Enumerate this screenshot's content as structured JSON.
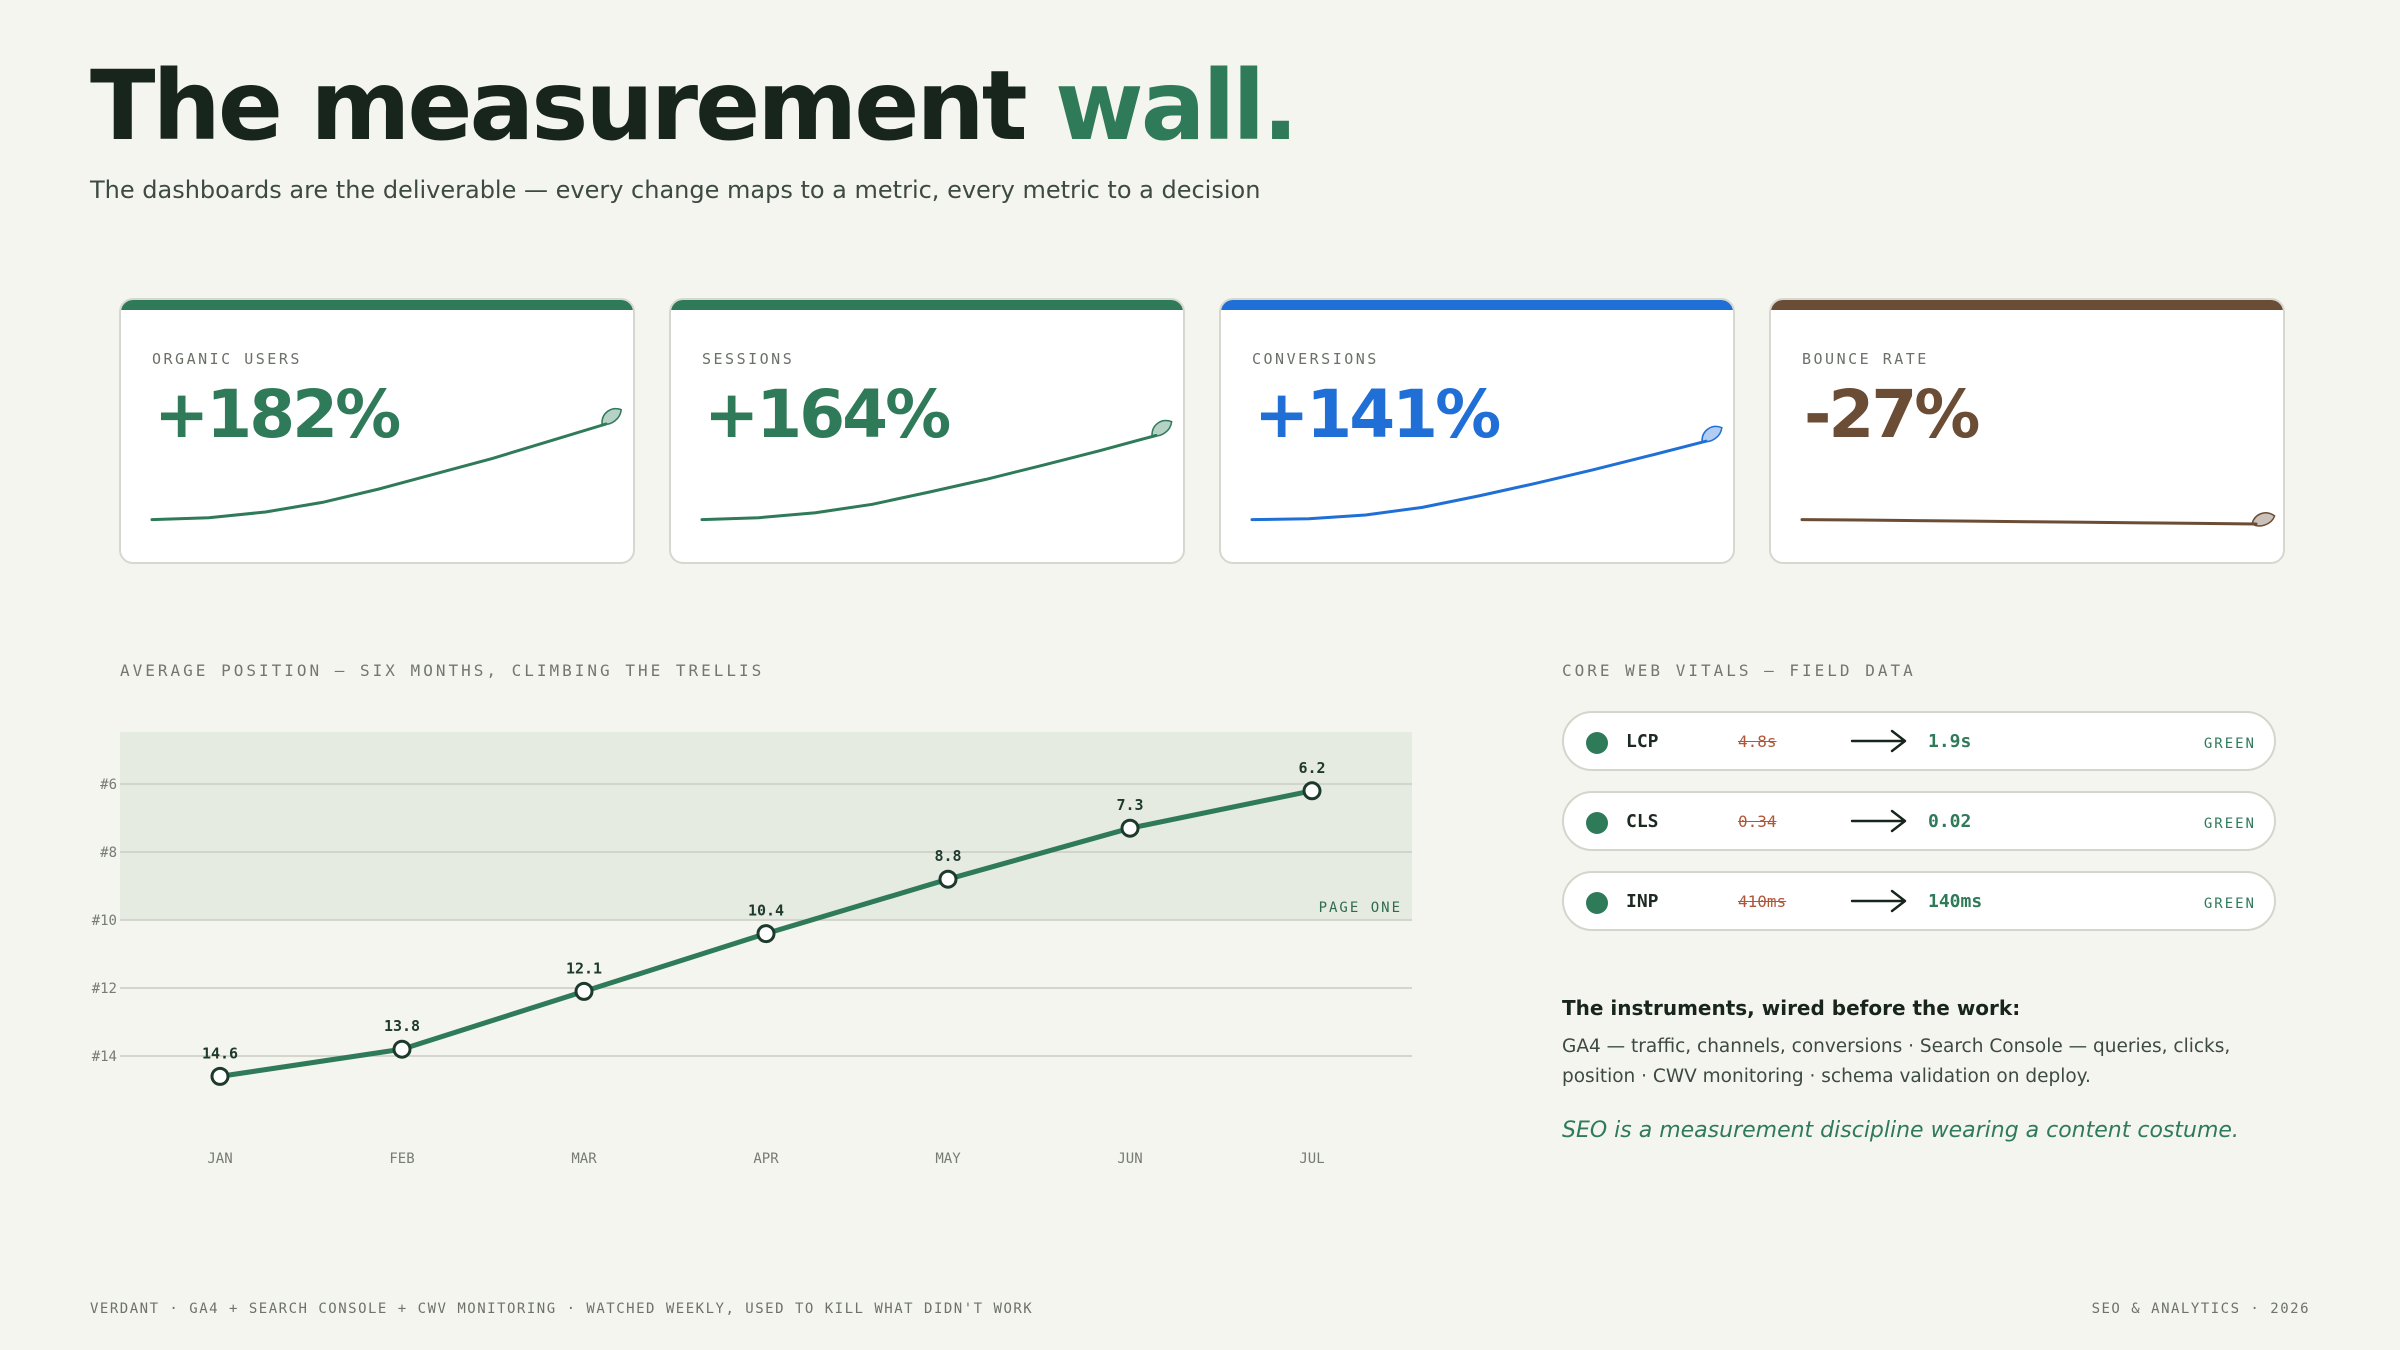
{
  "header": {
    "title_main": "The measurement",
    "title_accent": "wall.",
    "subtitle": "The dashboards are the deliverable — every change maps to a metric, every metric to a decision"
  },
  "colors": {
    "green": "#2f7a59",
    "blue": "#1f6fd6",
    "brown": "#6b4c34",
    "red_strike": "#b0573a"
  },
  "kpis": [
    {
      "label": "ORGANIC USERS",
      "value": "+182%",
      "color": "#2f7a59",
      "trend": [
        1.0,
        1.05,
        1.2,
        1.45,
        1.8,
        2.2,
        2.6,
        3.05,
        3.5
      ]
    },
    {
      "label": "SESSIONS",
      "value": "+164%",
      "color": "#2f7a59",
      "trend": [
        1.0,
        1.05,
        1.18,
        1.4,
        1.72,
        2.05,
        2.42,
        2.8,
        3.2
      ]
    },
    {
      "label": "CONVERSIONS",
      "value": "+141%",
      "color": "#1f6fd6",
      "trend": [
        1.0,
        1.02,
        1.12,
        1.32,
        1.62,
        1.95,
        2.3,
        2.67,
        3.05
      ]
    },
    {
      "label": "BOUNCE RATE",
      "value": "-27%",
      "color": "#6b4c34",
      "trend": [
        1.0,
        0.99,
        0.975,
        0.96,
        0.945,
        0.93,
        0.915,
        0.9,
        0.885
      ]
    }
  ],
  "position_chart": {
    "section_label": "AVERAGE POSITION — SIX MONTHS, CLIMBING THE TRELLIS",
    "band_label": "PAGE ONE",
    "chart_data": {
      "type": "line",
      "title": "AVERAGE POSITION — SIX MONTHS, CLIMBING THE TRELLIS",
      "categories": [
        "JAN",
        "FEB",
        "MAR",
        "APR",
        "MAY",
        "JUN",
        "JUL"
      ],
      "values": [
        14.6,
        13.8,
        12.1,
        10.4,
        8.8,
        7.3,
        6.2
      ],
      "data_labels": [
        "14.6",
        "13.8",
        "12.1",
        "10.4",
        "8.8",
        "7.3",
        "6.2"
      ],
      "y_ticks": [
        6,
        8,
        10,
        12,
        14
      ],
      "y_tick_labels": [
        "#6",
        "#8",
        "#10",
        "#12",
        "#14"
      ],
      "ylim": [
        4.5,
        16
      ],
      "y_inverted": true,
      "band_to": 10,
      "grid": true,
      "color": "#2f7a59"
    }
  },
  "vitals": {
    "section_label": "CORE WEB VITALS — FIELD DATA",
    "items": [
      {
        "name": "LCP",
        "before": "4.8s",
        "after": "1.9s",
        "status": "GREEN"
      },
      {
        "name": "CLS",
        "before": "0.34",
        "after": "0.02",
        "status": "GREEN"
      },
      {
        "name": "INP",
        "before": "410ms",
        "after": "140ms",
        "status": "GREEN"
      }
    ]
  },
  "instruments": {
    "title": "The instruments, wired before the work:",
    "body": "GA4 — traffic, channels, conversions · Search Console — queries, clicks, position · CWV monitoring · schema validation on deploy.",
    "tagline": "SEO is a measurement discipline wearing a content costume."
  },
  "footer": {
    "left": "VERDANT · GA4 + SEARCH CONSOLE + CWV MONITORING · WATCHED WEEKLY, USED TO KILL WHAT DIDN'T WORK",
    "right": "SEO & ANALYTICS · 2026"
  }
}
